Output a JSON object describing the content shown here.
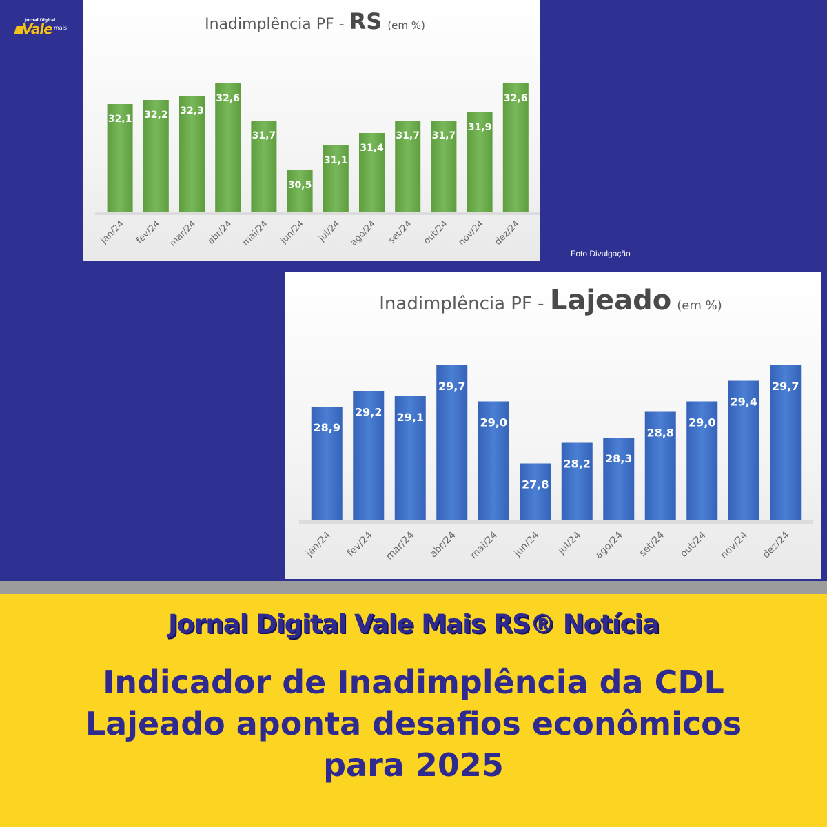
{
  "logo": {
    "small": "Jornal Digital",
    "main": "Vale",
    "mais": "mais"
  },
  "photo_credit": "Foto Divulgação",
  "banner": {
    "kicker": "Jornal Digital Vale Mais RS® Notícia",
    "headline": "Indicador de Inadimplência da CDL Lajeado aponta desafios econômicos para 2025"
  },
  "colors": {
    "background": "#2e3192",
    "banner": "#fcd523",
    "text": "#2e2a8f",
    "rs_bar": "#6aa84f",
    "lajeado_bar": "#3f6fc4"
  },
  "chart_data": [
    {
      "type": "bar",
      "title_prefix": "Inadimplência PF - ",
      "title_main": "RS",
      "title_suffix": "(em %)",
      "categories": [
        "jan/24",
        "fev/24",
        "mar/24",
        "abr/24",
        "mai/24",
        "jun/24",
        "jul/24",
        "ago/24",
        "set/24",
        "out/24",
        "nov/24",
        "dez/24"
      ],
      "values": [
        32.1,
        32.2,
        32.3,
        32.6,
        31.7,
        30.5,
        31.1,
        31.4,
        31.7,
        31.7,
        31.9,
        32.6
      ],
      "labels": [
        "32,1",
        "32,2",
        "32,3",
        "32,6",
        "31,7",
        "30,5",
        "31,1",
        "31,4",
        "31,7",
        "31,7",
        "31,9",
        "32,6"
      ],
      "ylim": [
        29.5,
        32.9
      ],
      "grid": false,
      "legend": "none"
    },
    {
      "type": "bar",
      "title_prefix": "Inadimplência PF - ",
      "title_main": "Lajeado",
      "title_suffix": "(em %)",
      "categories": [
        "jan/24",
        "fev/24",
        "mar/24",
        "abr/24",
        "mai/24",
        "jun/24",
        "jul/24",
        "ago/24",
        "set/24",
        "out/24",
        "nov/24",
        "dez/24"
      ],
      "values": [
        28.9,
        29.2,
        29.1,
        29.7,
        29.0,
        27.8,
        28.2,
        28.3,
        28.8,
        29.0,
        29.4,
        29.7
      ],
      "labels": [
        "28,9",
        "29,2",
        "29,1",
        "29,7",
        "29,0",
        "27,8",
        "28,2",
        "28,3",
        "28,8",
        "29,0",
        "29,4",
        "29,7"
      ],
      "ylim": [
        26.7,
        29.9
      ],
      "grid": false,
      "legend": "none"
    }
  ]
}
